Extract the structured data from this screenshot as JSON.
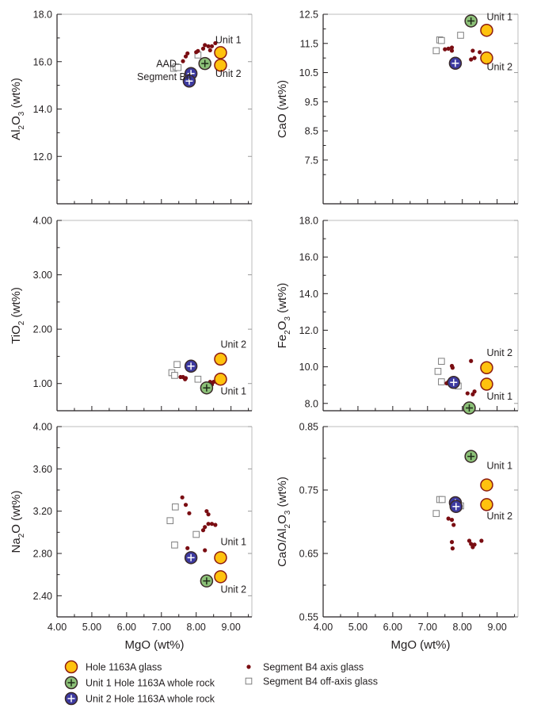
{
  "colors": {
    "glass": "#ffc20e",
    "glass_stroke": "#8b1a10",
    "unit1": "#8cc178",
    "unit2": "#3d3aa0",
    "whole_rock_stroke": "#3a2a2a",
    "axis": "#7a0d12",
    "offaxis": "#7f7f7f"
  },
  "legend": [
    {
      "marker": "glass",
      "label": "Hole 1163A glass"
    },
    {
      "marker": "unit1",
      "label": "Unit 1 Hole 1163A whole rock"
    },
    {
      "marker": "unit2",
      "label": "Unit 2 Hole 1163A whole rock"
    },
    {
      "marker": "axis",
      "label": "Segment B4 axis glass"
    },
    {
      "marker": "offaxis",
      "label": "Segment B4 off-axis glass"
    }
  ],
  "chart_data": [
    {
      "id": "al2o3",
      "type": "scatter",
      "ylabel": "Al2O3 (wt%)",
      "ylabel_parts": [
        [
          "Al",
          ""
        ],
        [
          "2",
          "sub"
        ],
        [
          "O",
          ""
        ],
        [
          "3",
          "sub"
        ],
        [
          " (wt%)",
          ""
        ]
      ],
      "xlim": [
        4.0,
        9.6
      ],
      "ylim": [
        10.0,
        18.0
      ],
      "yticks": [
        12.0,
        14.0,
        16.0,
        18.0
      ],
      "ytick_labels": [
        "12.0",
        "14.0",
        "16.0",
        "18.0"
      ],
      "xticks": [
        4.0,
        5.0,
        6.0,
        7.0,
        8.0,
        9.0
      ],
      "xtick_labels": [],
      "series": {
        "glass": [
          [
            8.7,
            16.38
          ],
          [
            8.7,
            15.85
          ]
        ],
        "unit1": [
          [
            8.25,
            15.92
          ]
        ],
        "unit2": [
          [
            7.85,
            15.5
          ],
          [
            7.8,
            15.18
          ]
        ],
        "axis": [
          [
            7.62,
            16.02
          ],
          [
            7.7,
            16.22
          ],
          [
            7.75,
            16.35
          ],
          [
            8.0,
            16.4
          ],
          [
            8.05,
            16.45
          ],
          [
            8.2,
            16.55
          ],
          [
            8.25,
            16.7
          ],
          [
            8.35,
            16.65
          ],
          [
            8.45,
            16.65
          ],
          [
            8.55,
            16.78
          ],
          [
            8.4,
            16.48
          ]
        ],
        "offaxis": [
          [
            7.35,
            15.72
          ],
          [
            7.42,
            15.78
          ],
          [
            7.48,
            15.75
          ],
          [
            8.05,
            16.28
          ]
        ]
      },
      "annotations": [
        {
          "text": "Unit 1",
          "x": 8.55,
          "y": 16.78
        },
        {
          "text": "Unit 2",
          "x": 8.55,
          "y": 15.35
        },
        {
          "text": "AAD",
          "x": 6.85,
          "y": 15.78
        },
        {
          "text": "Segment B4",
          "x": 6.3,
          "y": 15.22
        }
      ]
    },
    {
      "id": "cao",
      "type": "scatter",
      "ylabel": "CaO (wt%)",
      "ylabel_parts": [
        [
          "CaO (wt%)",
          ""
        ]
      ],
      "xlim": [
        4.0,
        9.6
      ],
      "ylim": [
        6.0,
        12.5
      ],
      "yticks": [
        7.5,
        8.5,
        9.5,
        10.5,
        11.5,
        12.5
      ],
      "ytick_labels": [
        "7.5",
        "8.5",
        "9.5",
        "10.5",
        "11.5",
        "12.5"
      ],
      "xticks": [
        4.0,
        5.0,
        6.0,
        7.0,
        8.0,
        9.0
      ],
      "xtick_labels": [],
      "series": {
        "glass": [
          [
            8.7,
            11.95
          ],
          [
            8.7,
            11.0
          ]
        ],
        "unit1": [
          [
            8.25,
            12.27
          ]
        ],
        "unit2": [
          [
            7.8,
            10.82
          ]
        ],
        "axis": [
          [
            7.5,
            11.3
          ],
          [
            7.6,
            11.32
          ],
          [
            7.7,
            11.25
          ],
          [
            7.7,
            11.36
          ],
          [
            8.3,
            11.25
          ],
          [
            8.5,
            11.2
          ],
          [
            8.25,
            10.95
          ],
          [
            8.35,
            11.0
          ],
          [
            7.85,
            10.75
          ]
        ],
        "offaxis": [
          [
            7.25,
            11.25
          ],
          [
            7.35,
            11.62
          ],
          [
            7.4,
            11.6
          ],
          [
            7.95,
            11.78
          ]
        ]
      },
      "annotations": [
        {
          "text": "Unit 1",
          "x": 8.7,
          "y": 12.3
        },
        {
          "text": "Unit 2",
          "x": 8.7,
          "y": 10.58
        }
      ]
    },
    {
      "id": "tio2",
      "type": "scatter",
      "ylabel": "TiO2 (wt%)",
      "ylabel_parts": [
        [
          "TiO",
          ""
        ],
        [
          "2",
          "sub"
        ],
        [
          " (wt%)",
          ""
        ]
      ],
      "xlim": [
        4.0,
        9.6
      ],
      "ylim": [
        0.5,
        4.0
      ],
      "yticks": [
        1.0,
        2.0,
        3.0,
        4.0
      ],
      "ytick_labels": [
        "1.00",
        "2.00",
        "3.00",
        "4.00"
      ],
      "xticks": [
        4.0,
        5.0,
        6.0,
        7.0,
        8.0,
        9.0
      ],
      "xtick_labels": [],
      "series": {
        "glass": [
          [
            8.7,
            1.45
          ],
          [
            8.7,
            1.08
          ]
        ],
        "unit1": [
          [
            8.3,
            0.92
          ]
        ],
        "unit2": [
          [
            7.85,
            1.32
          ]
        ],
        "axis": [
          [
            7.55,
            1.12
          ],
          [
            7.62,
            1.12
          ],
          [
            7.7,
            1.1
          ],
          [
            7.68,
            1.08
          ],
          [
            8.4,
            1.03
          ],
          [
            8.5,
            1.03
          ],
          [
            8.45,
            0.98
          ],
          [
            8.6,
            1.02
          ]
        ],
        "offaxis": [
          [
            7.3,
            1.2
          ],
          [
            7.38,
            1.15
          ],
          [
            7.45,
            1.35
          ],
          [
            8.05,
            1.08
          ]
        ]
      },
      "annotations": [
        {
          "text": "Unit 2",
          "x": 8.7,
          "y": 1.66
        },
        {
          "text": "Unit 1",
          "x": 8.7,
          "y": 0.8
        }
      ]
    },
    {
      "id": "fe2o3",
      "type": "scatter",
      "ylabel": "Fe2O3 (wt%)",
      "ylabel_parts": [
        [
          "Fe",
          ""
        ],
        [
          "2",
          "sub"
        ],
        [
          "O",
          ""
        ],
        [
          "3",
          "sub"
        ],
        [
          " (wt%)",
          ""
        ]
      ],
      "xlim": [
        4.0,
        9.6
      ],
      "ylim": [
        7.6,
        18.0
      ],
      "yticks": [
        8.0,
        10.0,
        12.0,
        14.0,
        16.0,
        18.0
      ],
      "ytick_labels": [
        "8.0",
        "10.0",
        "12.0",
        "14.0",
        "16.0",
        "18.0"
      ],
      "xticks": [
        4.0,
        5.0,
        6.0,
        7.0,
        8.0,
        9.0
      ],
      "xtick_labels": [],
      "series": {
        "glass": [
          [
            8.7,
            9.95
          ],
          [
            8.7,
            9.05
          ]
        ],
        "unit1": [
          [
            8.2,
            7.75
          ]
        ],
        "unit2": [
          [
            7.75,
            9.15
          ]
        ],
        "axis": [
          [
            7.7,
            10.05
          ],
          [
            7.72,
            9.95
          ],
          [
            7.6,
            9.18
          ],
          [
            8.25,
            10.32
          ],
          [
            8.15,
            8.55
          ],
          [
            8.35,
            8.65
          ],
          [
            8.3,
            8.5
          ],
          [
            8.6,
            9.05
          ],
          [
            7.55,
            9.1
          ]
        ],
        "offaxis": [
          [
            7.3,
            9.75
          ],
          [
            7.4,
            10.3
          ],
          [
            7.4,
            9.18
          ],
          [
            7.88,
            8.95
          ]
        ]
      },
      "annotations": [
        {
          "text": "Unit 2",
          "x": 8.7,
          "y": 10.6
        },
        {
          "text": "Unit 1",
          "x": 8.7,
          "y": 8.2
        }
      ]
    },
    {
      "id": "na2o",
      "type": "scatter",
      "ylabel": "Na2O (wt%)",
      "ylabel_parts": [
        [
          "Na",
          ""
        ],
        [
          "2",
          "sub"
        ],
        [
          "O (wt%)",
          ""
        ]
      ],
      "xlim": [
        4.0,
        9.6
      ],
      "ylim": [
        2.2,
        4.0
      ],
      "yticks": [
        2.4,
        2.8,
        3.2,
        3.6,
        4.0
      ],
      "ytick_labels": [
        "2.40",
        "2.80",
        "3.20",
        "3.60",
        "4.00"
      ],
      "xticks": [
        4.0,
        5.0,
        6.0,
        7.0,
        8.0,
        9.0
      ],
      "xtick_labels": [
        "4.00",
        "5.00",
        "6.00",
        "7.00",
        "8.00",
        "9.00"
      ],
      "xlabel": "MgO (wt%)",
      "series": {
        "glass": [
          [
            8.7,
            2.76
          ],
          [
            8.7,
            2.58
          ]
        ],
        "unit1": [
          [
            8.3,
            2.54
          ]
        ],
        "unit2": [
          [
            7.85,
            2.76
          ]
        ],
        "axis": [
          [
            7.6,
            3.33
          ],
          [
            7.7,
            3.26
          ],
          [
            7.8,
            3.18
          ],
          [
            8.3,
            3.2
          ],
          [
            8.35,
            3.17
          ],
          [
            8.25,
            3.05
          ],
          [
            8.35,
            3.08
          ],
          [
            8.45,
            3.08
          ],
          [
            8.55,
            3.07
          ],
          [
            8.2,
            3.02
          ],
          [
            7.75,
            2.85
          ],
          [
            8.25,
            2.83
          ]
        ],
        "offaxis": [
          [
            7.25,
            3.11
          ],
          [
            7.4,
            3.24
          ],
          [
            7.38,
            2.88
          ],
          [
            8.0,
            2.98
          ]
        ]
      },
      "annotations": [
        {
          "text": "Unit 1",
          "x": 8.7,
          "y": 2.88
        },
        {
          "text": "Unit 2",
          "x": 8.7,
          "y": 2.43
        }
      ]
    },
    {
      "id": "caoal2o3",
      "type": "scatter",
      "ylabel": "CaO/Al2O3 (wt%)",
      "ylabel_parts": [
        [
          "CaO/Al",
          ""
        ],
        [
          "2",
          "sub"
        ],
        [
          "O",
          ""
        ],
        [
          "3",
          "sub"
        ],
        [
          " (wt%)",
          ""
        ]
      ],
      "xlim": [
        4.0,
        9.6
      ],
      "ylim": [
        0.55,
        0.85
      ],
      "yticks": [
        0.55,
        0.65,
        0.75,
        0.85
      ],
      "ytick_labels": [
        "0.55",
        "0.65",
        "0.75",
        "0.85"
      ],
      "xticks": [
        4.0,
        5.0,
        6.0,
        7.0,
        8.0,
        9.0
      ],
      "xtick_labels": [
        "4.00",
        "5.00",
        "6.00",
        "7.00",
        "8.00",
        "9.00"
      ],
      "xlabel": "MgO (wt%)",
      "series": {
        "glass": [
          [
            8.7,
            0.758
          ],
          [
            8.7,
            0.727
          ]
        ],
        "unit1": [
          [
            8.25,
            0.803
          ]
        ],
        "unit2": [
          [
            7.8,
            0.73
          ],
          [
            7.82,
            0.724
          ]
        ],
        "axis": [
          [
            7.6,
            0.705
          ],
          [
            7.7,
            0.703
          ],
          [
            7.75,
            0.695
          ],
          [
            7.7,
            0.668
          ],
          [
            7.72,
            0.658
          ],
          [
            8.2,
            0.67
          ],
          [
            8.25,
            0.665
          ],
          [
            8.35,
            0.664
          ],
          [
            8.3,
            0.66
          ],
          [
            8.55,
            0.67
          ]
        ],
        "offaxis": [
          [
            7.25,
            0.713
          ],
          [
            7.35,
            0.735
          ],
          [
            7.42,
            0.735
          ],
          [
            7.95,
            0.725
          ]
        ]
      },
      "annotations": [
        {
          "text": "Unit 1",
          "x": 8.7,
          "y": 0.783
        },
        {
          "text": "Unit 2",
          "x": 8.7,
          "y": 0.704
        }
      ]
    }
  ]
}
